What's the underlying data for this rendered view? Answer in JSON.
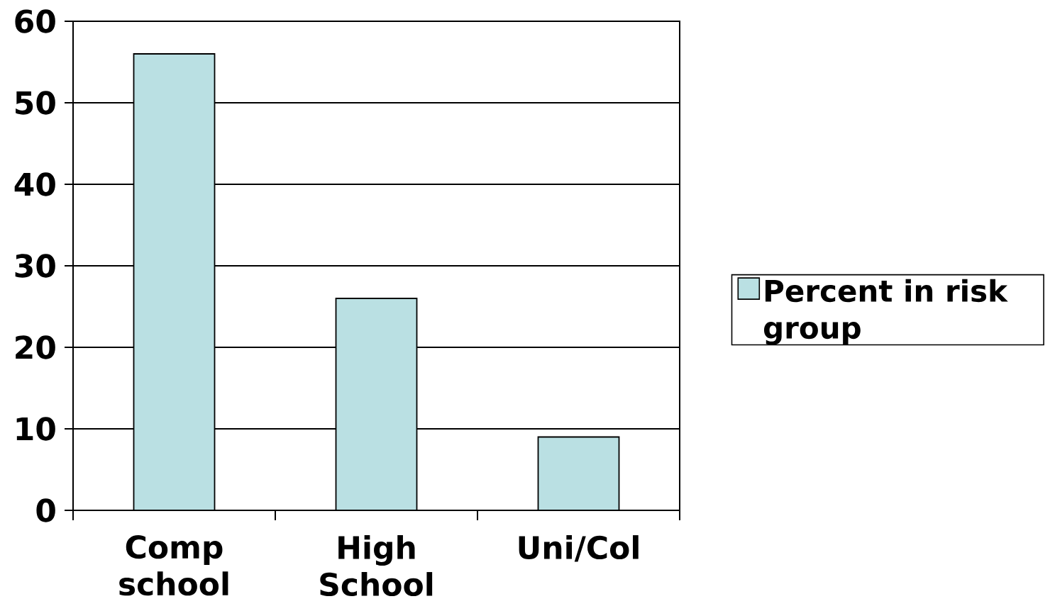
{
  "chart_data": {
    "type": "bar",
    "categories": [
      "Comp school",
      "High School",
      "Uni/Col"
    ],
    "series": [
      {
        "name": "Percent in risk group",
        "color": "#bae0e3",
        "values": [
          56,
          26,
          9
        ]
      }
    ],
    "ylim": [
      0,
      60
    ],
    "yticks": [
      0,
      10,
      20,
      30,
      40,
      50,
      60
    ],
    "grid": "y",
    "legend": "right"
  }
}
